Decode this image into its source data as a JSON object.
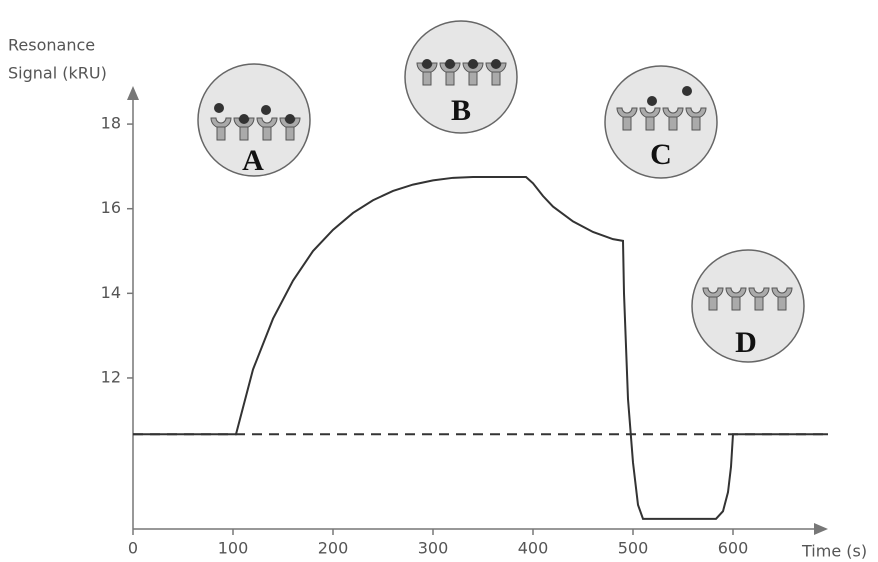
{
  "chart_data": {
    "type": "line",
    "ylabel": [
      "Resonance",
      "Signal (kRU)"
    ],
    "xlabel": "Time (s)",
    "x": [
      0,
      103,
      120,
      140,
      160,
      180,
      200,
      220,
      240,
      260,
      280,
      300,
      320,
      340,
      360,
      393,
      400,
      410,
      420,
      440,
      460,
      480,
      490,
      491,
      495,
      500,
      505,
      510,
      583,
      590,
      595,
      598,
      600,
      695
    ],
    "values": [
      10.67,
      10.67,
      12.2,
      13.4,
      14.3,
      15.0,
      15.5,
      15.9,
      16.2,
      16.42,
      16.57,
      16.67,
      16.73,
      16.75,
      16.75,
      16.75,
      16.6,
      16.3,
      16.05,
      15.7,
      15.45,
      15.28,
      15.24,
      14.0,
      11.5,
      10.0,
      9.0,
      8.67,
      8.67,
      8.85,
      9.3,
      9.9,
      10.67,
      10.67
    ],
    "color": "#333333",
    "baseline": 10.67,
    "xlim": [
      0,
      695
    ],
    "ylim": [
      8.43,
      18.9
    ],
    "xticks": [
      0,
      100,
      200,
      300,
      400,
      500,
      600
    ],
    "yticks": [
      12,
      14,
      16,
      18
    ],
    "annotations": [
      "A",
      "B",
      "C",
      "D"
    ]
  }
}
